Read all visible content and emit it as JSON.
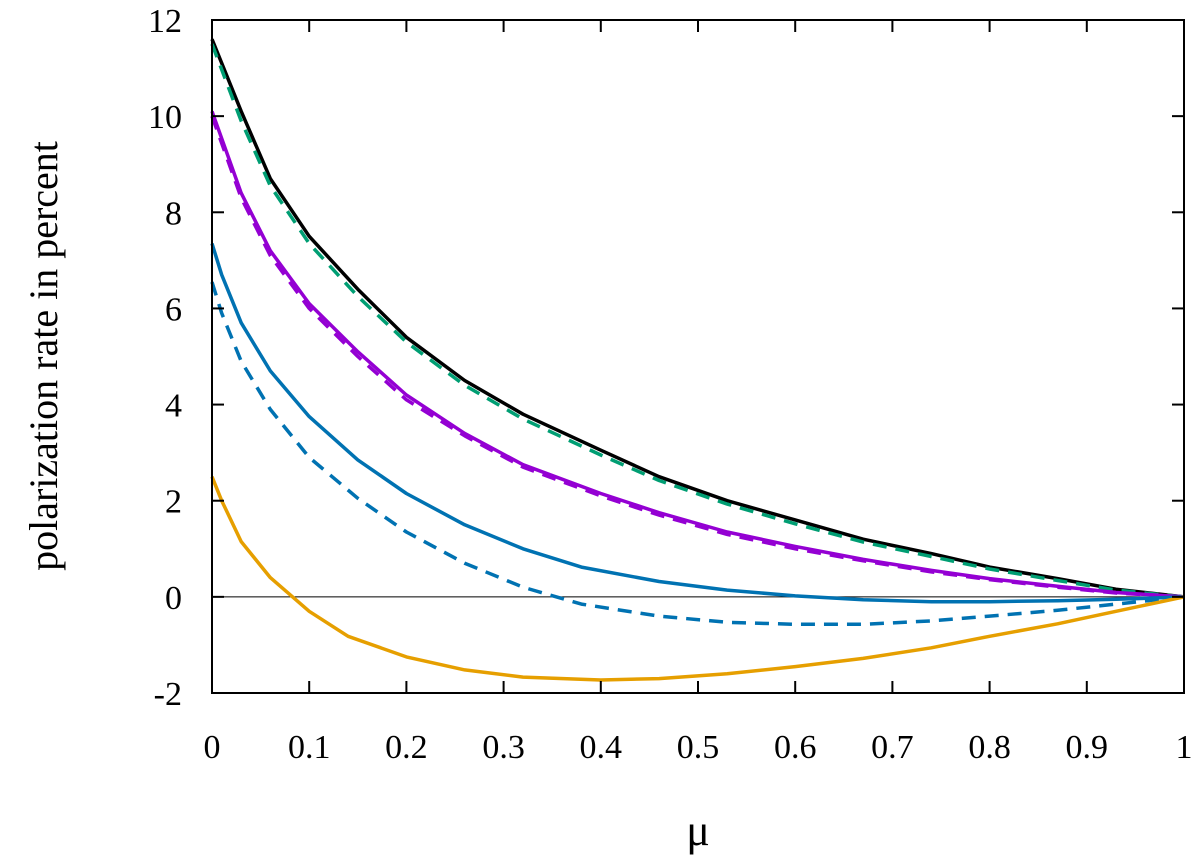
{
  "chart_data": {
    "type": "line",
    "title": "",
    "xlabel": "μ",
    "ylabel": "polarization rate in percent",
    "xlim": [
      0,
      1
    ],
    "ylim": [
      -2,
      12
    ],
    "xticks": [
      0,
      0.1,
      0.2,
      0.3,
      0.4,
      0.5,
      0.6,
      0.7,
      0.8,
      0.9,
      1
    ],
    "xtick_labels": [
      "0",
      "0.1",
      "0.2",
      "0.3",
      "0.4",
      "0.5",
      "0.6",
      "0.7",
      "0.8",
      "0.9",
      "1"
    ],
    "yticks": [
      -2,
      0,
      2,
      4,
      6,
      8,
      10,
      12
    ],
    "ytick_labels": [
      "-2",
      "0",
      "2",
      "4",
      "6",
      "8",
      "10",
      "12"
    ],
    "grid": false,
    "legend": "none",
    "zero_line": true,
    "series": [
      {
        "color": "#000000",
        "dash": "solid",
        "x": [
          0,
          0.03,
          0.06,
          0.1,
          0.15,
          0.2,
          0.26,
          0.32,
          0.4,
          0.46,
          0.53,
          0.6,
          0.67,
          0.74,
          0.8,
          0.87,
          0.93,
          1.0
        ],
        "y": [
          11.6,
          10.1,
          8.7,
          7.5,
          6.4,
          5.4,
          4.5,
          3.8,
          3.05,
          2.5,
          2.0,
          1.6,
          1.2,
          0.9,
          0.62,
          0.38,
          0.16,
          0.0
        ]
      },
      {
        "color": "#009e73",
        "dash": "dashed",
        "x": [
          0,
          0.03,
          0.06,
          0.1,
          0.15,
          0.2,
          0.26,
          0.32,
          0.4,
          0.46,
          0.53,
          0.6,
          0.67,
          0.74,
          0.8,
          0.87,
          0.93,
          1.0
        ],
        "y": [
          11.5,
          9.9,
          8.55,
          7.35,
          6.25,
          5.3,
          4.4,
          3.7,
          2.95,
          2.42,
          1.93,
          1.52,
          1.14,
          0.84,
          0.58,
          0.34,
          0.14,
          0.0
        ]
      },
      {
        "color": "#9400d3",
        "dash": "solid",
        "x": [
          0,
          0.03,
          0.06,
          0.1,
          0.15,
          0.2,
          0.26,
          0.32,
          0.4,
          0.46,
          0.53,
          0.6,
          0.67,
          0.74,
          0.8,
          0.87,
          0.93,
          1.0
        ],
        "y": [
          10.1,
          8.4,
          7.2,
          6.1,
          5.1,
          4.2,
          3.4,
          2.75,
          2.15,
          1.75,
          1.35,
          1.05,
          0.78,
          0.55,
          0.38,
          0.22,
          0.09,
          0.0
        ]
      },
      {
        "color": "#9400d3",
        "dash": "dashed",
        "x": [
          0,
          0.03,
          0.06,
          0.1,
          0.15,
          0.2,
          0.26,
          0.32,
          0.4,
          0.46,
          0.53,
          0.6,
          0.67,
          0.74,
          0.8,
          0.87,
          0.93,
          1.0
        ],
        "y": [
          10.0,
          8.3,
          7.1,
          6.0,
          5.0,
          4.1,
          3.35,
          2.7,
          2.1,
          1.7,
          1.3,
          1.0,
          0.75,
          0.52,
          0.36,
          0.2,
          0.08,
          0.0
        ]
      },
      {
        "color": "#0072b2",
        "dash": "solid",
        "x": [
          0,
          0.01,
          0.03,
          0.06,
          0.1,
          0.15,
          0.2,
          0.26,
          0.32,
          0.38,
          0.46,
          0.53,
          0.6,
          0.67,
          0.74,
          0.8,
          0.87,
          0.93,
          1.0
        ],
        "y": [
          7.35,
          6.7,
          5.7,
          4.7,
          3.75,
          2.85,
          2.15,
          1.5,
          1.0,
          0.62,
          0.32,
          0.14,
          0.02,
          -0.06,
          -0.1,
          -0.1,
          -0.08,
          -0.05,
          0.0
        ]
      },
      {
        "color": "#0072b2",
        "dash": "dashed",
        "x": [
          0,
          0.01,
          0.03,
          0.06,
          0.1,
          0.15,
          0.2,
          0.26,
          0.32,
          0.38,
          0.46,
          0.53,
          0.6,
          0.67,
          0.74,
          0.8,
          0.87,
          0.93,
          1.0
        ],
        "y": [
          6.55,
          5.9,
          4.9,
          3.9,
          2.9,
          2.05,
          1.35,
          0.7,
          0.2,
          -0.15,
          -0.4,
          -0.53,
          -0.57,
          -0.57,
          -0.5,
          -0.4,
          -0.28,
          -0.15,
          0.0
        ]
      },
      {
        "color": "#e69f00",
        "dash": "solid",
        "x": [
          0,
          0.01,
          0.03,
          0.06,
          0.1,
          0.14,
          0.2,
          0.26,
          0.32,
          0.4,
          0.46,
          0.53,
          0.6,
          0.67,
          0.74,
          0.8,
          0.87,
          0.93,
          1.0
        ],
        "y": [
          2.5,
          2.0,
          1.15,
          0.4,
          -0.3,
          -0.82,
          -1.25,
          -1.52,
          -1.67,
          -1.73,
          -1.7,
          -1.6,
          -1.45,
          -1.28,
          -1.06,
          -0.82,
          -0.56,
          -0.3,
          0.0
        ]
      }
    ]
  }
}
